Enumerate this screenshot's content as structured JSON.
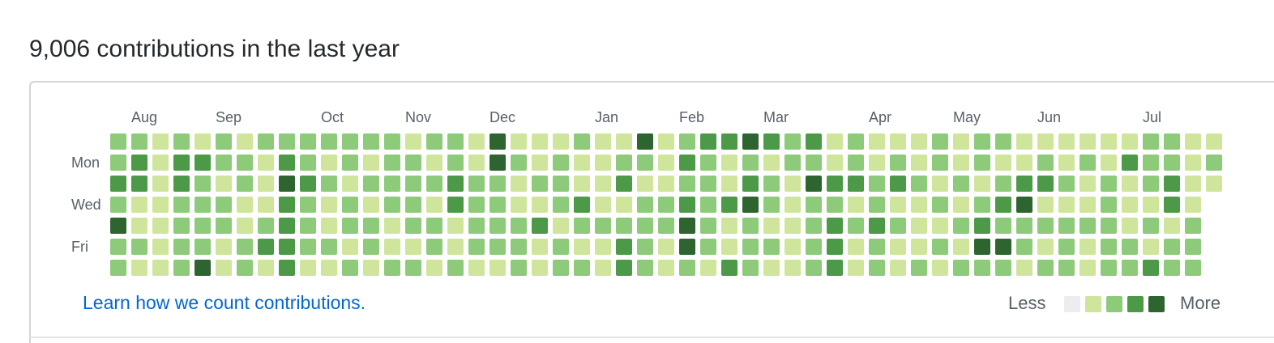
{
  "title": "9,006 contributions in the last year",
  "months": [
    "Aug",
    "Sep",
    "Oct",
    "Nov",
    "Dec",
    "Jan",
    "Feb",
    "Mar",
    "Apr",
    "May",
    "Jun",
    "Jul"
  ],
  "weekdays": [
    "Mon",
    "Wed",
    "Fri"
  ],
  "grid": {
    "colors": [
      "#ebedf0",
      "#d0e59c",
      "#8dca7a",
      "#4c9a48",
      "#2e6430"
    ],
    "levels": [
      [
        2,
        2,
        1,
        2,
        1,
        2,
        1,
        2,
        2,
        2,
        2,
        2,
        2,
        2,
        1,
        2,
        2,
        1,
        4,
        1,
        1,
        1,
        2,
        1,
        1,
        4,
        1,
        2,
        3,
        3,
        4,
        3,
        2,
        3,
        1,
        2,
        1,
        1,
        1,
        2,
        1,
        2,
        2,
        1,
        1,
        1,
        1,
        1,
        1,
        2,
        2,
        1,
        1
      ],
      [
        2,
        3,
        1,
        3,
        3,
        2,
        2,
        1,
        3,
        2,
        1,
        2,
        1,
        2,
        2,
        1,
        2,
        1,
        4,
        2,
        1,
        2,
        1,
        1,
        2,
        2,
        1,
        3,
        2,
        1,
        2,
        1,
        2,
        2,
        1,
        2,
        1,
        2,
        1,
        2,
        1,
        2,
        1,
        1,
        2,
        1,
        2,
        1,
        3,
        2,
        2,
        1,
        2
      ],
      [
        3,
        3,
        1,
        3,
        2,
        1,
        2,
        1,
        4,
        3,
        2,
        1,
        2,
        2,
        2,
        2,
        3,
        2,
        2,
        1,
        2,
        2,
        1,
        1,
        3,
        1,
        1,
        2,
        2,
        1,
        3,
        2,
        1,
        4,
        3,
        3,
        2,
        3,
        2,
        1,
        2,
        1,
        2,
        3,
        3,
        2,
        1,
        2,
        1,
        2,
        3,
        1,
        1
      ],
      [
        2,
        1,
        1,
        2,
        2,
        2,
        1,
        1,
        3,
        2,
        1,
        2,
        1,
        2,
        2,
        1,
        3,
        2,
        2,
        1,
        1,
        2,
        3,
        1,
        1,
        2,
        2,
        3,
        2,
        3,
        4,
        2,
        1,
        2,
        2,
        1,
        2,
        1,
        1,
        2,
        1,
        2,
        3,
        4,
        1,
        1,
        1,
        2,
        1,
        1,
        3,
        1
      ],
      [
        4,
        1,
        1,
        2,
        2,
        2,
        1,
        2,
        3,
        2,
        1,
        2,
        2,
        1,
        2,
        2,
        1,
        2,
        2,
        2,
        3,
        1,
        2,
        2,
        2,
        2,
        2,
        4,
        2,
        1,
        2,
        1,
        1,
        2,
        3,
        2,
        3,
        2,
        1,
        1,
        2,
        3,
        2,
        2,
        2,
        2,
        2,
        2,
        1,
        2,
        1,
        2
      ],
      [
        2,
        2,
        1,
        2,
        2,
        1,
        2,
        3,
        3,
        2,
        2,
        1,
        2,
        1,
        1,
        2,
        1,
        2,
        2,
        2,
        1,
        2,
        1,
        1,
        3,
        2,
        1,
        4,
        2,
        1,
        2,
        2,
        1,
        2,
        3,
        1,
        2,
        1,
        1,
        2,
        1,
        4,
        4,
        2,
        1,
        2,
        1,
        2,
        2,
        1,
        2,
        2
      ],
      [
        2,
        1,
        1,
        2,
        4,
        1,
        2,
        1,
        3,
        1,
        1,
        2,
        1,
        2,
        2,
        1,
        2,
        1,
        1,
        2,
        1,
        2,
        2,
        1,
        3,
        2,
        1,
        2,
        1,
        3,
        2,
        1,
        1,
        2,
        3,
        1,
        2,
        1,
        2,
        1,
        2,
        2,
        2,
        1,
        2,
        2,
        1,
        2,
        2,
        3,
        2,
        2
      ]
    ]
  },
  "link": "Learn how we count contributions.",
  "legend": {
    "less": "Less",
    "more": "More"
  }
}
